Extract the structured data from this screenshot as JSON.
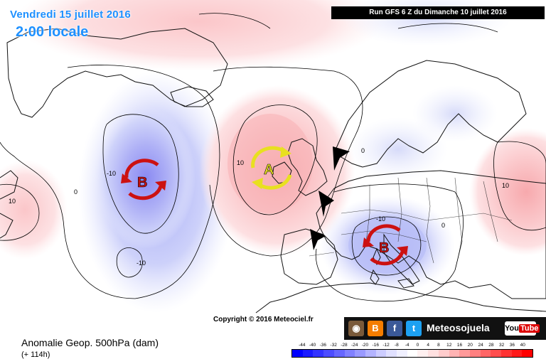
{
  "header": {
    "date": "Vendredi 15 juillet 2016",
    "time": "2:00 locale",
    "run": "Run GFS 6 Z du Dimanche 10 juillet 2016"
  },
  "map": {
    "copyright": "Copyright © 2016 Meteociel.fr",
    "contour_labels": [
      {
        "text": "-10",
        "name": "contour-label-atlantic-low"
      },
      {
        "text": "-10",
        "name": "contour-label-atlantic-low-south"
      },
      {
        "text": "0",
        "name": "contour-label-zero-west"
      },
      {
        "text": "10",
        "name": "contour-label-west-edge"
      },
      {
        "text": "10",
        "name": "contour-label-british-high"
      },
      {
        "text": "0",
        "name": "contour-label-zero-north-sea"
      },
      {
        "text": "-10",
        "name": "contour-label-mediterranean-low"
      },
      {
        "text": "0",
        "name": "contour-label-zero-central-europe"
      },
      {
        "text": "10",
        "name": "contour-label-east-europe"
      }
    ],
    "pressure_centers": [
      {
        "letter": "B",
        "color": "#cc1111",
        "rotation": "counterclockwise",
        "name": "low-atlantic"
      },
      {
        "letter": "A",
        "color": "#e8e020",
        "rotation": "clockwise",
        "name": "high-british-isles"
      },
      {
        "letter": "B",
        "color": "#cc1111",
        "rotation": "counterclockwise",
        "name": "low-mediterranean"
      }
    ]
  },
  "footer": {
    "title": "Anomalie Geop. 500hPa (dam)",
    "subtitle": "(+ 114h)",
    "social": {
      "icons": [
        "instagram-icon",
        "blogger-icon",
        "facebook-icon",
        "twitter-icon"
      ],
      "instagram_glyph": "◉",
      "blogger_glyph": "B",
      "facebook_glyph": "f",
      "twitter_glyph": "t",
      "brand": "Meteosojuela",
      "youtube_you": "You",
      "youtube_tube": "Tube"
    },
    "scale": {
      "labels": [
        "-44",
        "-40",
        "-36",
        "-32",
        "-28",
        "-24",
        "-20",
        "-16",
        "-12",
        "-8",
        "-4",
        "0",
        "4",
        "8",
        "12",
        "16",
        "20",
        "24",
        "28",
        "32",
        "36",
        "40"
      ],
      "colors": [
        "#0000ff",
        "#1a1aff",
        "#3333ff",
        "#4d4dff",
        "#6666ff",
        "#8080ff",
        "#9999ff",
        "#b3b3ff",
        "#ccccff",
        "#e0e0ff",
        "#f0f0ff",
        "#ffffff",
        "#fff0f0",
        "#ffe0e0",
        "#ffcccc",
        "#ffb3b3",
        "#ff9999",
        "#ff8080",
        "#ff6666",
        "#ff4d4d",
        "#ff3333",
        "#ff1a1a",
        "#ff0000"
      ]
    }
  }
}
